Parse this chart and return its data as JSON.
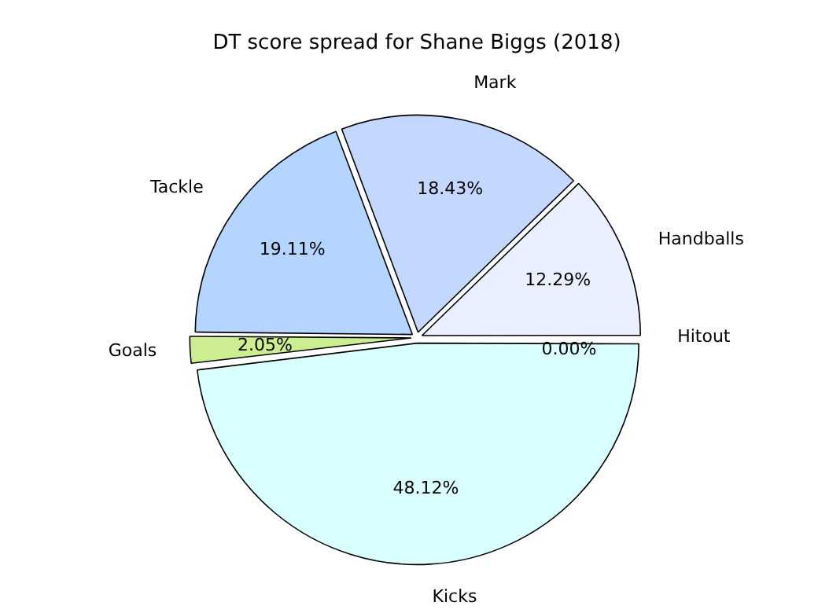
{
  "chart_data": {
    "type": "pie",
    "title": "DT score spread for Shane Biggs (2018)",
    "categories": [
      "Hitout",
      "Kicks",
      "Goals",
      "Tackle",
      "Mark",
      "Handballs"
    ],
    "values": [
      0,
      48.12,
      2.05,
      19.11,
      18.43,
      12.29
    ],
    "value_labels": [
      "0.00%",
      "48.12%",
      "2.05%",
      "19.11%",
      "18.43%",
      "12.29%"
    ],
    "colors": [
      "#f0f8ff",
      "#d9ffff",
      "#ccee90",
      "#b3d5ff",
      "#c4d8ff",
      "#eaf0ff"
    ],
    "legend": false
  }
}
